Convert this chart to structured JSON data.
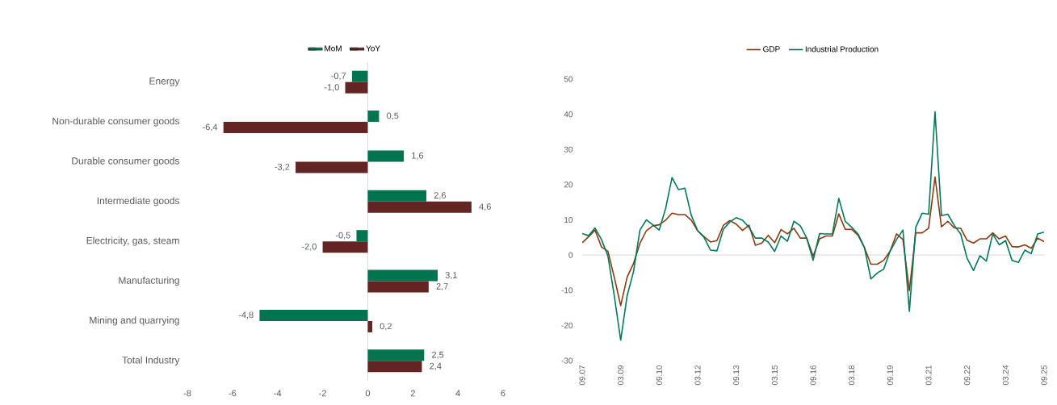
{
  "chart_data": [
    {
      "type": "bar",
      "orientation": "horizontal",
      "legend": "top",
      "categories": [
        "Energy",
        "Non-durable consumer goods",
        "Durable consumer goods",
        "Intermediate goods",
        "Electricity, gas, steam",
        "Manufacturing",
        "Mining and quarrying",
        "Total Industry"
      ],
      "series": [
        {
          "name": "MoM",
          "color": "#00734f",
          "values": [
            -0.7,
            0.5,
            1.6,
            2.6,
            -0.5,
            3.1,
            -4.8,
            2.5
          ],
          "value_labels": [
            "-0,7",
            "0,5",
            "1,6",
            "2,6",
            "-0,5",
            "3,1",
            "-4,8",
            "2,5"
          ]
        },
        {
          "name": "YoY",
          "color": "#632523",
          "values": [
            -1.0,
            -6.4,
            -3.2,
            4.6,
            -2.0,
            2.7,
            0.2,
            2.4
          ],
          "value_labels": [
            "-1,0",
            "-6,4",
            "-3,2",
            "4,6",
            "-2,0",
            "2,7",
            "0,2",
            "2,4"
          ]
        }
      ],
      "xlim": [
        -8,
        6
      ],
      "xticks": [
        -8,
        -6,
        -4,
        -2,
        0,
        2,
        4,
        6
      ]
    },
    {
      "type": "line",
      "legend": "top",
      "categories": [
        "09.07",
        null,
        null,
        null,
        null,
        null,
        "03.09",
        null,
        null,
        null,
        null,
        null,
        "09.10",
        null,
        null,
        null,
        null,
        null,
        "03.12",
        null,
        null,
        null,
        null,
        null,
        "09.13",
        null,
        null,
        null,
        null,
        null,
        "03.15",
        null,
        null,
        null,
        null,
        null,
        "09.16",
        null,
        null,
        null,
        null,
        null,
        "03.18",
        null,
        null,
        null,
        null,
        null,
        "09.19",
        null,
        null,
        null,
        null,
        null,
        "03.21",
        null,
        null,
        null,
        null,
        null,
        "09.22",
        null,
        null,
        null,
        null,
        null,
        "03.24",
        null,
        null,
        null,
        null,
        null,
        "09.25"
      ],
      "series": [
        {
          "name": "GDP",
          "color": "#8b3a0f",
          "values": [
            3.5,
            5.2,
            7.1,
            2.3,
            1.1,
            -6.3,
            -14.4,
            -6.3,
            -2.4,
            3.3,
            6.9,
            8.3,
            8.6,
            9.9,
            11.9,
            11.5,
            11.5,
            9.9,
            6.9,
            5.2,
            3.7,
            4.1,
            8.4,
            9.8,
            8.8,
            7.0,
            8.5,
            2.8,
            3.4,
            5.6,
            3.5,
            7.2,
            6.0,
            7.6,
            4.8,
            4.8,
            -0.3,
            4.6,
            5.4,
            5.4,
            11.7,
            7.3,
            7.3,
            5.6,
            2.1,
            -2.6,
            -2.6,
            -1.5,
            1.1,
            6.0,
            4.4,
            -10.1,
            6.3,
            6.3,
            7.6,
            22.2,
            8.0,
            9.6,
            7.7,
            7.6,
            4.2,
            3.4,
            4.6,
            4.6,
            6.3,
            4.6,
            5.4,
            2.4,
            2.3,
            2.9,
            1.9,
            4.8,
            3.8
          ]
        },
        {
          "name": "Industrial Production",
          "color": "#00785a",
          "values": [
            6.1,
            5.5,
            7.7,
            4.4,
            -0.2,
            -11.6,
            -24.2,
            -11.6,
            -4.7,
            7.1,
            10.0,
            8.6,
            7.1,
            13.2,
            22.0,
            18.6,
            19.0,
            11.3,
            6.9,
            5.0,
            1.4,
            1.2,
            7.3,
            9.4,
            10.6,
            9.9,
            7.9,
            4.8,
            4.8,
            3.7,
            1.0,
            5.4,
            3.9,
            9.6,
            8.3,
            4.8,
            -1.5,
            6.1,
            6.0,
            6.0,
            16.1,
            9.6,
            7.9,
            6.0,
            2.1,
            -6.8,
            -5.1,
            -4.0,
            1.1,
            4.4,
            7.1,
            -16.0,
            7.9,
            11.9,
            11.6,
            40.7,
            11.2,
            11.6,
            8.4,
            6.0,
            -0.9,
            -4.4,
            -0.2,
            -1.7,
            6.0,
            2.9,
            4.1,
            -1.5,
            -2.1,
            1.4,
            0.4,
            6.0,
            6.5
          ]
        }
      ],
      "ylim": [
        -30,
        50
      ],
      "yticks": [
        -30,
        -20,
        -10,
        0,
        10,
        20,
        30,
        40,
        50
      ]
    }
  ]
}
